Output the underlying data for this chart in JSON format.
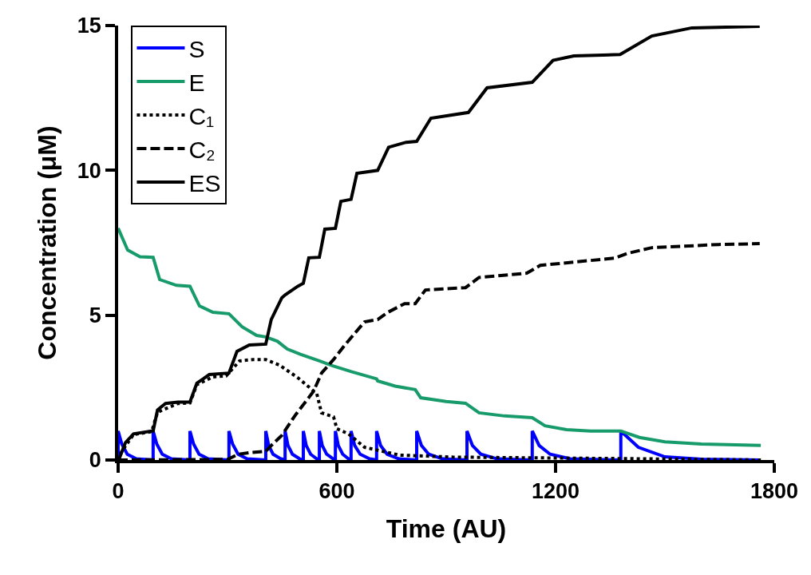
{
  "chart_data": {
    "type": "line",
    "xlabel": "Time (AU)",
    "ylabel": "Concentration (μM)",
    "xlim": [
      0,
      1800
    ],
    "xticks": [
      0,
      600,
      1200,
      1800
    ],
    "ylim": [
      0,
      15
    ],
    "yticks": [
      0,
      5,
      10,
      15
    ],
    "grid": false,
    "legend": "top left",
    "marker": "none",
    "series": [
      {
        "name": "S",
        "color": "#0000ff",
        "line_style": "solid",
        "x": [
          0,
          0,
          10,
          25,
          50,
          96,
          96,
          106,
          121,
          146,
          197,
          197,
          207,
          222,
          247,
          304,
          304,
          314,
          329,
          354,
          405,
          405,
          413,
          425,
          445,
          458,
          458,
          466,
          478,
          498,
          508,
          508,
          516,
          528,
          545,
          552,
          552,
          560,
          572,
          590,
          596,
          596,
          604,
          616,
          632,
          639,
          639,
          649,
          664,
          690,
          709,
          709,
          720,
          738,
          770,
          819,
          819,
          832,
          852,
          890,
          957,
          957,
          972,
          995,
          1040,
          1136,
          1136,
          1155,
          1185,
          1240,
          1379,
          1379,
          1427,
          1500,
          1600,
          1763
        ],
        "values": [
          0,
          1,
          0.55,
          0.2,
          0.04,
          0,
          1,
          0.55,
          0.2,
          0.04,
          0,
          1,
          0.55,
          0.2,
          0.04,
          0,
          1,
          0.55,
          0.2,
          0.04,
          0,
          1,
          0.5,
          0.2,
          0.05,
          0,
          1,
          0.5,
          0.2,
          0.04,
          0,
          1,
          0.5,
          0.2,
          0.04,
          0,
          1,
          0.5,
          0.2,
          0.04,
          0,
          1,
          0.5,
          0.2,
          0.04,
          0,
          1,
          0.5,
          0.2,
          0.04,
          0,
          1,
          0.5,
          0.2,
          0.04,
          0,
          1,
          0.5,
          0.2,
          0.04,
          0,
          1,
          0.5,
          0.2,
          0.04,
          0,
          1,
          0.5,
          0.2,
          0.04,
          0,
          1,
          0.44,
          0.11,
          0.03,
          0
        ]
      },
      {
        "name": "E",
        "color": "#189b6b",
        "line_style": "solid",
        "x": [
          0,
          26,
          60,
          96,
          114,
          160,
          197,
          223,
          260,
          304,
          340,
          380,
          405,
          437,
          464,
          500,
          552,
          589,
          640,
          709,
          712,
          760,
          815,
          830,
          900,
          953,
          990,
          1060,
          1136,
          1171,
          1230,
          1296,
          1379,
          1430,
          1500,
          1600,
          1763
        ],
        "values": [
          8,
          7.25,
          7.02,
          7.0,
          6.23,
          6.03,
          6.0,
          5.32,
          5.1,
          5.05,
          4.6,
          4.3,
          4.25,
          4.1,
          3.83,
          3.65,
          3.42,
          3.25,
          3.05,
          2.8,
          2.73,
          2.55,
          2.43,
          2.15,
          2.02,
          1.96,
          1.63,
          1.52,
          1.46,
          1.18,
          1.05,
          1.0,
          1.0,
          0.78,
          0.63,
          0.55,
          0.5
        ]
      },
      {
        "name": "C₁",
        "color": "#000000",
        "line_style": "dotted",
        "x": [
          0,
          10,
          42,
          92,
          108,
          164,
          197,
          216,
          260,
          296,
          333,
          370,
          405,
          442,
          493,
          545,
          558,
          591,
          600,
          632,
          676,
          771,
          917,
          1100,
          1379,
          1763
        ],
        "values": [
          0,
          0.3,
          0.88,
          0.98,
          1.65,
          1.95,
          1.97,
          2.6,
          2.87,
          2.9,
          3.42,
          3.47,
          3.47,
          3.28,
          2.84,
          2.29,
          1.63,
          1.49,
          1.08,
          0.9,
          0.44,
          0.17,
          0.1,
          0.08,
          0.05,
          0
        ]
      },
      {
        "name": "C₂",
        "color": "#000000",
        "line_style": "dashed",
        "x": [
          0,
          300,
          330,
          360,
          405,
          420,
          449,
          486,
          536,
          558,
          591,
          624,
          676,
          712,
          740,
          786,
          815,
          843,
          953,
          990,
          1121,
          1158,
          1362,
          1399,
          1464,
          1647,
          1760
        ],
        "values": [
          0,
          0.02,
          0.2,
          0.25,
          0.3,
          0.5,
          0.85,
          1.55,
          2.37,
          3.0,
          3.47,
          4.0,
          4.77,
          4.85,
          5.1,
          5.4,
          5.4,
          5.87,
          5.95,
          6.3,
          6.45,
          6.72,
          6.97,
          7.14,
          7.33,
          7.44,
          7.47
        ]
      },
      {
        "name": "ES",
        "color": "#000000",
        "line_style": "solid",
        "x": [
          0,
          4,
          20,
          42,
          92,
          96,
          108,
          130,
          164,
          197,
          216,
          250,
          304,
          326,
          360,
          405,
          420,
          449,
          458,
          493,
          508,
          523,
          552,
          567,
          596,
          611,
          639,
          655,
          712,
          742,
          790,
          819,
          858,
          961,
          1012,
          1136,
          1193,
          1250,
          1377,
          1464,
          1574,
          1760
        ],
        "values": [
          0,
          0.08,
          0.6,
          0.9,
          1.0,
          1.0,
          1.73,
          1.95,
          2.0,
          2.0,
          2.65,
          2.95,
          3.0,
          3.75,
          3.97,
          4.0,
          4.85,
          5.6,
          5.7,
          6.0,
          6.1,
          6.98,
          7.0,
          7.97,
          8.0,
          8.93,
          9.0,
          9.9,
          10.0,
          10.8,
          10.97,
          11.0,
          11.8,
          12.0,
          12.85,
          13.04,
          13.8,
          13.95,
          14.0,
          14.64,
          14.92,
          14.97
        ]
      }
    ]
  }
}
